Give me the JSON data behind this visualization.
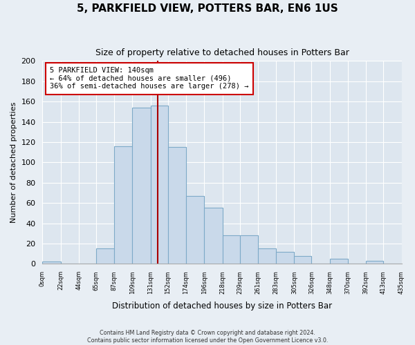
{
  "title": "5, PARKFIELD VIEW, POTTERS BAR, EN6 1US",
  "subtitle": "Size of property relative to detached houses in Potters Bar",
  "xlabel": "Distribution of detached houses by size in Potters Bar",
  "ylabel": "Number of detached properties",
  "bar_edges": [
    0,
    22,
    44,
    65,
    87,
    109,
    131,
    152,
    174,
    196,
    218,
    239,
    261,
    283,
    305,
    326,
    348,
    370,
    392,
    413,
    435
  ],
  "bar_heights": [
    2,
    0,
    0,
    15,
    116,
    154,
    156,
    115,
    67,
    55,
    28,
    28,
    15,
    12,
    8,
    0,
    5,
    0,
    3,
    0
  ],
  "bar_color": "#c9d9ea",
  "bar_edgecolor": "#7eaac8",
  "vline_x": 140,
  "vline_color": "#aa0000",
  "annotation_line1": "5 PARKFIELD VIEW: 140sqm",
  "annotation_line2": "← 64% of detached houses are smaller (496)",
  "annotation_line3": "36% of semi-detached houses are larger (278) →",
  "annotation_box_color": "white",
  "annotation_box_edgecolor": "#cc0000",
  "tick_labels": [
    "0sqm",
    "22sqm",
    "44sqm",
    "65sqm",
    "87sqm",
    "109sqm",
    "131sqm",
    "152sqm",
    "174sqm",
    "196sqm",
    "218sqm",
    "239sqm",
    "261sqm",
    "283sqm",
    "305sqm",
    "326sqm",
    "348sqm",
    "370sqm",
    "392sqm",
    "413sqm",
    "435sqm"
  ],
  "ylim": [
    0,
    200
  ],
  "yticks": [
    0,
    20,
    40,
    60,
    80,
    100,
    120,
    140,
    160,
    180,
    200
  ],
  "footnote1": "Contains HM Land Registry data © Crown copyright and database right 2024.",
  "footnote2": "Contains public sector information licensed under the Open Government Licence v3.0.",
  "fig_facecolor": "#e8eef4",
  "axes_facecolor": "#dde6ef",
  "grid_color": "#ffffff",
  "spine_color": "#aaaaaa"
}
